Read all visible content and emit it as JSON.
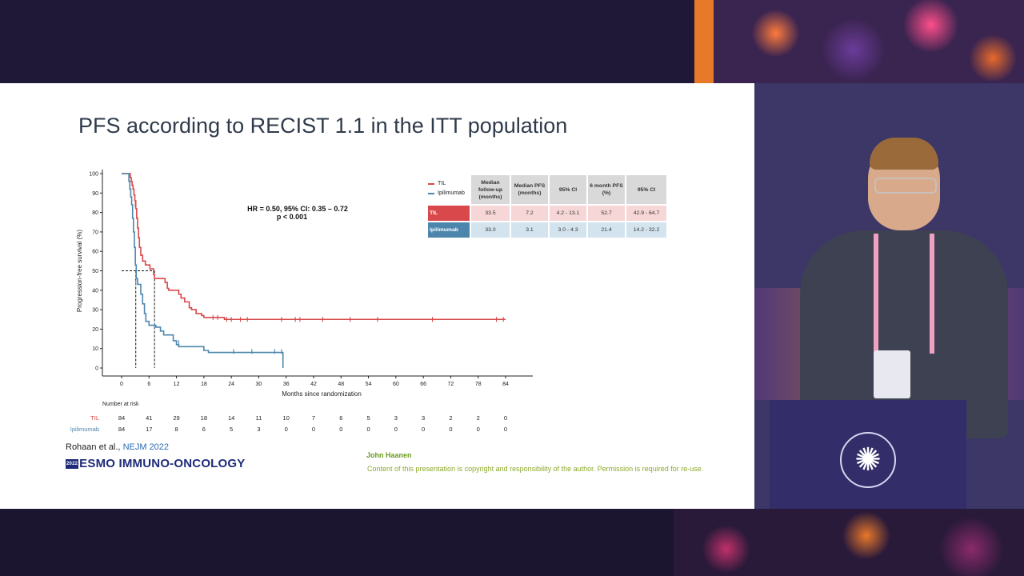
{
  "slide": {
    "title": "PFS according to RECIST 1.1 in the ITT population",
    "citation_authors": "Rohaan et al., ",
    "citation_journal": "NEJM 2022",
    "conference_year": "2022",
    "conference_name": "ESMO IMMUNO-ONCOLOGY",
    "presenter": "John Haanen",
    "copyright": "Content of this presentation is copyright and responsibility of the author. Permission is required for re-use."
  },
  "colors": {
    "til": "#d9484a",
    "ipilimumab": "#4d86ad",
    "esmo_navy": "#1e2a78",
    "footer_green": "#8aa82a"
  },
  "chart_data": {
    "type": "line",
    "subtype": "kaplan-meier step",
    "ylabel": "Progression-free survival (%)",
    "xlabel": "Months since randomization",
    "ylim": [
      0,
      100
    ],
    "xlim": [
      0,
      84
    ],
    "yticks": [
      0,
      10,
      20,
      30,
      40,
      50,
      60,
      70,
      80,
      90,
      100
    ],
    "xticks": [
      0,
      6,
      12,
      18,
      24,
      30,
      36,
      42,
      48,
      54,
      60,
      66,
      72,
      78,
      84
    ],
    "annotation_line1": "HR = 0.50, 95% CI: 0.35 – 0.72",
    "annotation_line2": "p < 0.001",
    "median_lines": {
      "y": 50,
      "x": [
        3.1,
        7.2
      ]
    },
    "legend": [
      "TIL",
      "Ipilimumab"
    ],
    "series": [
      {
        "name": "TIL",
        "color": "#d9484a",
        "steps": [
          [
            0,
            100
          ],
          [
            1.9,
            100
          ],
          [
            1.9,
            98
          ],
          [
            2.1,
            96
          ],
          [
            2.3,
            94
          ],
          [
            2.5,
            92
          ],
          [
            2.7,
            89
          ],
          [
            2.9,
            86
          ],
          [
            3.1,
            82
          ],
          [
            3.3,
            77
          ],
          [
            3.5,
            72
          ],
          [
            3.7,
            67
          ],
          [
            3.9,
            62
          ],
          [
            4.2,
            58
          ],
          [
            4.6,
            55
          ],
          [
            5.2,
            53
          ],
          [
            6.2,
            51
          ],
          [
            7.0,
            48
          ],
          [
            7.2,
            46
          ],
          [
            9.5,
            44
          ],
          [
            10.0,
            41
          ],
          [
            10.3,
            40
          ],
          [
            12.5,
            38
          ],
          [
            13.0,
            36
          ],
          [
            13.8,
            34
          ],
          [
            14.8,
            31
          ],
          [
            15.3,
            30
          ],
          [
            16.3,
            28
          ],
          [
            17.5,
            27
          ],
          [
            18.0,
            26
          ],
          [
            22.5,
            25
          ],
          [
            84,
            25
          ]
        ],
        "censors": [
          [
            3.0,
            84
          ],
          [
            20,
            26
          ],
          [
            21,
            26
          ],
          [
            23,
            25
          ],
          [
            24,
            25
          ],
          [
            26,
            25
          ],
          [
            27.5,
            25
          ],
          [
            35,
            25
          ],
          [
            38,
            25
          ],
          [
            39,
            25
          ],
          [
            44,
            25
          ],
          [
            50,
            25
          ],
          [
            56,
            25
          ],
          [
            68,
            25
          ],
          [
            82,
            25
          ],
          [
            83.5,
            25
          ]
        ]
      },
      {
        "name": "Ipilimumab",
        "color": "#4d86ad",
        "steps": [
          [
            0,
            100
          ],
          [
            1.4,
            100
          ],
          [
            1.6,
            96
          ],
          [
            1.8,
            92
          ],
          [
            2.0,
            88
          ],
          [
            2.2,
            84
          ],
          [
            2.4,
            77
          ],
          [
            2.6,
            70
          ],
          [
            2.8,
            62
          ],
          [
            3.0,
            53
          ],
          [
            3.2,
            46
          ],
          [
            3.5,
            43
          ],
          [
            4.2,
            38
          ],
          [
            4.6,
            33
          ],
          [
            5.0,
            28
          ],
          [
            5.3,
            24
          ],
          [
            6.0,
            22
          ],
          [
            7.5,
            21
          ],
          [
            8.5,
            19
          ],
          [
            9.2,
            17
          ],
          [
            11.3,
            14
          ],
          [
            12.0,
            12
          ],
          [
            12.5,
            11
          ],
          [
            18.0,
            9
          ],
          [
            19.0,
            8
          ],
          [
            35.3,
            8
          ],
          [
            35.3,
            0
          ]
        ],
        "censors": [
          [
            3.1,
            44
          ],
          [
            7.2,
            22
          ],
          [
            12.5,
            13
          ],
          [
            24.5,
            8.5
          ],
          [
            28.5,
            8.5
          ],
          [
            33.5,
            8.5
          ],
          [
            35,
            8.5
          ]
        ]
      }
    ],
    "risk_table": {
      "title": "Number at risk",
      "times": [
        0,
        6,
        12,
        18,
        24,
        30,
        36,
        42,
        48,
        54,
        60,
        66,
        72,
        78,
        84
      ],
      "TIL": [
        84,
        41,
        29,
        18,
        14,
        11,
        10,
        7,
        6,
        5,
        3,
        3,
        2,
        2,
        0
      ],
      "Ipilimumab": [
        84,
        17,
        8,
        6,
        5,
        3,
        0,
        0,
        0,
        0,
        0,
        0,
        0,
        0,
        0
      ]
    }
  },
  "stats_table": {
    "headers": [
      "Median follow-up (months)",
      "Median PFS (months)",
      "95% CI",
      "6 month PFS (%)",
      "95% CI"
    ],
    "rows": [
      {
        "label": "TIL",
        "cells": [
          "33.5",
          "7.2",
          "4.2 - 13.1",
          "52.7",
          "42.9 - 64.7"
        ]
      },
      {
        "label": "Ipilimumab",
        "cells": [
          "33.0",
          "3.1",
          "3.0 - 4.3",
          "21.4",
          "14.2 - 32.2"
        ]
      }
    ]
  }
}
